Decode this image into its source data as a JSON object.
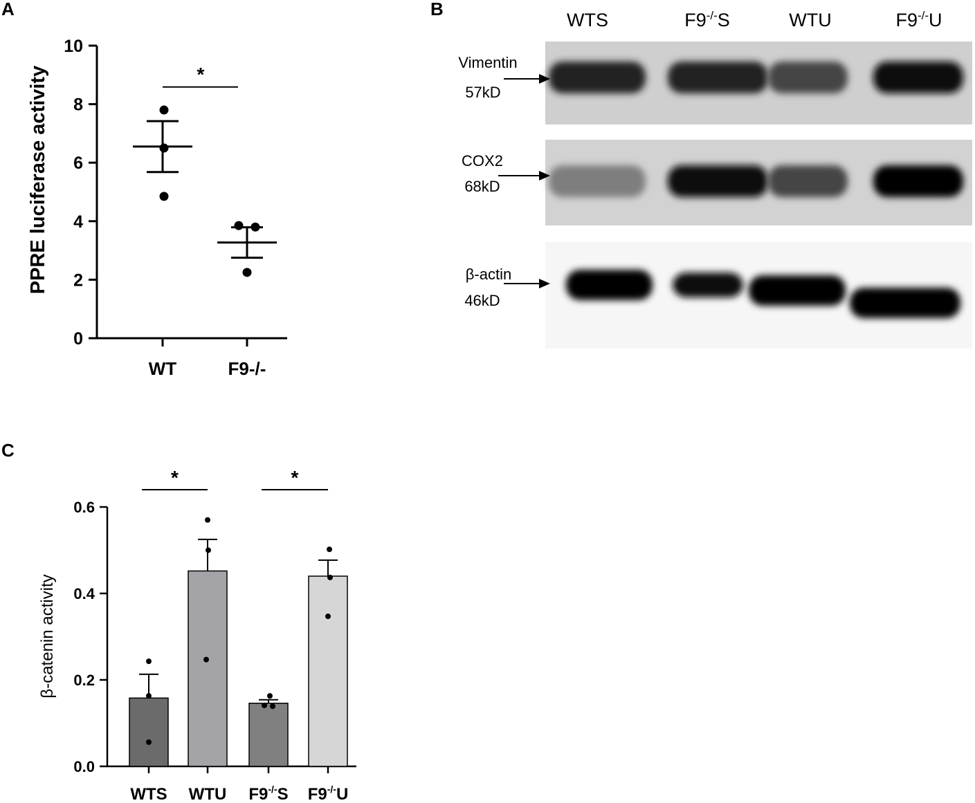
{
  "panels": {
    "a": "A",
    "b": "B",
    "c": "C"
  },
  "chart_data": [
    {
      "type": "scatter",
      "panel": "A",
      "ylabel": "PPRE luciferase activity",
      "ylim": [
        0,
        10
      ],
      "yticks": [
        "0",
        "2",
        "4",
        "6",
        "8",
        "10"
      ],
      "categories": [
        "WT",
        "F9-/-"
      ],
      "points": [
        [
          7.8,
          6.5,
          4.85
        ],
        [
          3.85,
          3.8,
          2.25
        ]
      ],
      "mean": [
        6.55,
        3.27
      ],
      "sem": [
        0.87,
        0.52
      ],
      "significance": {
        "groups": [
          0,
          1
        ],
        "label": "*",
        "y": 8.8
      }
    },
    {
      "type": "bar",
      "panel": "C",
      "ylabel": "β-catenin activity",
      "ylim": [
        0,
        0.6
      ],
      "yticks": [
        "0.0",
        "0.2",
        "0.4",
        "0.6"
      ],
      "categories": [
        {
          "base": "WTS",
          "sup": "",
          "tail": ""
        },
        {
          "base": "WTU",
          "sup": "",
          "tail": ""
        },
        {
          "base": "F9",
          "sup": "-/-",
          "tail": "S"
        },
        {
          "base": "F9",
          "sup": "-/-",
          "tail": "U"
        }
      ],
      "values": [
        0.158,
        0.452,
        0.146,
        0.44
      ],
      "sem": [
        0.055,
        0.073,
        0.008,
        0.037
      ],
      "points": [
        [
          0.243,
          0.163,
          0.056
        ],
        [
          0.57,
          0.5,
          0.247
        ],
        [
          0.163,
          0.139,
          0.141
        ],
        [
          0.502,
          0.437,
          0.347
        ]
      ],
      "colors": [
        "#6b6b6b",
        "#a3a3a8",
        "#808080",
        "#d6d6d6"
      ],
      "significance": [
        {
          "groups": [
            0,
            1
          ],
          "label": "*",
          "y": 0.64
        },
        {
          "groups": [
            2,
            3
          ],
          "label": "*",
          "y": 0.64
        }
      ]
    }
  ],
  "blot": {
    "lanes": [
      {
        "base": "WTS",
        "sup": "",
        "tail": ""
      },
      {
        "base": "F9",
        "sup": "-/-",
        "tail": "S"
      },
      {
        "base": "WTU",
        "sup": "",
        "tail": ""
      },
      {
        "base": "F9",
        "sup": "-/-",
        "tail": "U"
      }
    ],
    "rows": [
      {
        "name": "Vimentin",
        "kd": "57kD",
        "intensities": [
          0.85,
          0.85,
          0.7,
          0.95
        ]
      },
      {
        "name": "COX2",
        "kd": "68kD",
        "intensities": [
          0.45,
          0.95,
          0.7,
          1.0
        ]
      },
      {
        "name": "β-actin",
        "kd": "46kD",
        "intensities": [
          1.0,
          0.95,
          1.0,
          1.0
        ]
      }
    ]
  }
}
